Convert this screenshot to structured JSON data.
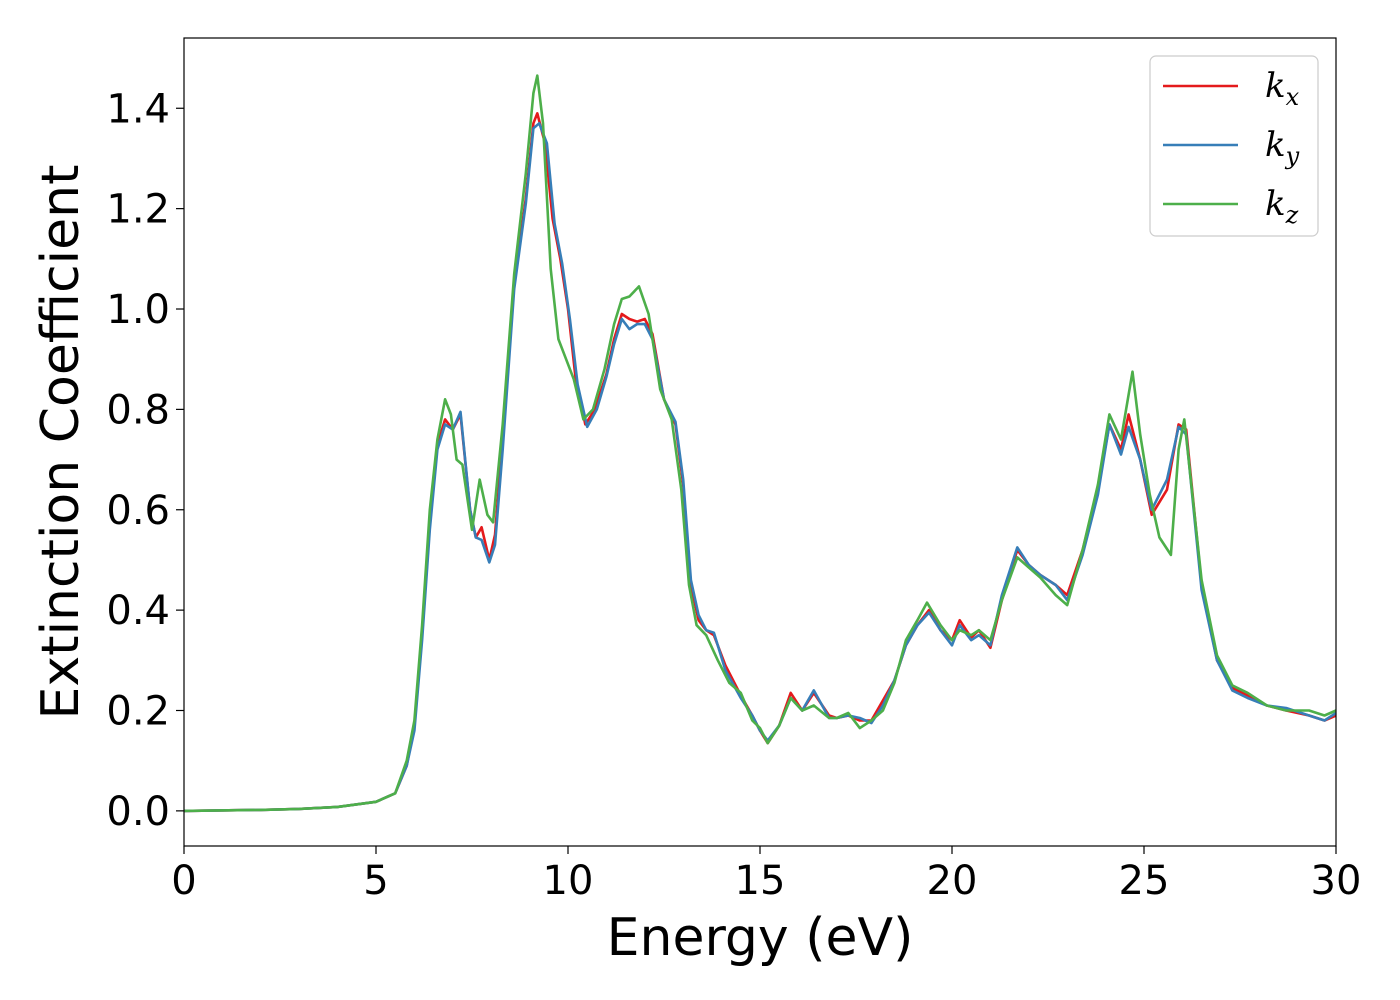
{
  "chart_data": {
    "type": "line",
    "xlabel": "Energy (eV)",
    "ylabel": "Extinction Coefficient",
    "xlim": [
      0,
      30
    ],
    "ylim": [
      -0.07,
      1.54
    ],
    "xticks": [
      0,
      5,
      10,
      15,
      20,
      25,
      30
    ],
    "xtick_labels": [
      "0",
      "5",
      "10",
      "15",
      "20",
      "25",
      "30"
    ],
    "yticks": [
      0.0,
      0.2,
      0.4,
      0.6,
      0.8,
      1.0,
      1.2,
      1.4
    ],
    "ytick_labels": [
      "0.0",
      "0.2",
      "0.4",
      "0.6",
      "0.8",
      "1.0",
      "1.2",
      "1.4"
    ],
    "grid": false,
    "legend_position": "top-right",
    "series": [
      {
        "name": "k_x",
        "label_base": "k",
        "label_sub": "x",
        "color": "#e41a1c",
        "points": [
          [
            0,
            0
          ],
          [
            2,
            0.002
          ],
          [
            3,
            0.004
          ],
          [
            4,
            0.008
          ],
          [
            5,
            0.018
          ],
          [
            5.5,
            0.035
          ],
          [
            5.8,
            0.09
          ],
          [
            6.0,
            0.17
          ],
          [
            6.2,
            0.35
          ],
          [
            6.4,
            0.57
          ],
          [
            6.6,
            0.73
          ],
          [
            6.8,
            0.78
          ],
          [
            7.0,
            0.76
          ],
          [
            7.2,
            0.79
          ],
          [
            7.45,
            0.6
          ],
          [
            7.6,
            0.545
          ],
          [
            7.75,
            0.565
          ],
          [
            7.95,
            0.5
          ],
          [
            8.1,
            0.55
          ],
          [
            8.3,
            0.74
          ],
          [
            8.6,
            1.05
          ],
          [
            8.9,
            1.22
          ],
          [
            9.1,
            1.37
          ],
          [
            9.2,
            1.39
          ],
          [
            9.4,
            1.33
          ],
          [
            9.6,
            1.18
          ],
          [
            9.8,
            1.1
          ],
          [
            10.0,
            1.0
          ],
          [
            10.2,
            0.86
          ],
          [
            10.45,
            0.77
          ],
          [
            10.7,
            0.8
          ],
          [
            11.0,
            0.87
          ],
          [
            11.2,
            0.94
          ],
          [
            11.4,
            0.99
          ],
          [
            11.6,
            0.98
          ],
          [
            11.8,
            0.975
          ],
          [
            12.0,
            0.98
          ],
          [
            12.2,
            0.95
          ],
          [
            12.5,
            0.82
          ],
          [
            12.8,
            0.77
          ],
          [
            13.0,
            0.65
          ],
          [
            13.2,
            0.45
          ],
          [
            13.4,
            0.38
          ],
          [
            13.6,
            0.36
          ],
          [
            13.8,
            0.35
          ],
          [
            14.1,
            0.29
          ],
          [
            14.5,
            0.23
          ],
          [
            14.8,
            0.19
          ],
          [
            15.0,
            0.16
          ],
          [
            15.2,
            0.135
          ],
          [
            15.5,
            0.17
          ],
          [
            15.8,
            0.235
          ],
          [
            16.1,
            0.2
          ],
          [
            16.4,
            0.235
          ],
          [
            16.8,
            0.19
          ],
          [
            17.0,
            0.185
          ],
          [
            17.3,
            0.19
          ],
          [
            17.6,
            0.18
          ],
          [
            17.9,
            0.18
          ],
          [
            18.2,
            0.22
          ],
          [
            18.5,
            0.26
          ],
          [
            18.8,
            0.33
          ],
          [
            19.1,
            0.37
          ],
          [
            19.4,
            0.4
          ],
          [
            19.7,
            0.36
          ],
          [
            20.0,
            0.34
          ],
          [
            20.2,
            0.38
          ],
          [
            20.5,
            0.345
          ],
          [
            20.7,
            0.36
          ],
          [
            21.0,
            0.325
          ],
          [
            21.3,
            0.42
          ],
          [
            21.7,
            0.52
          ],
          [
            22.0,
            0.49
          ],
          [
            22.3,
            0.47
          ],
          [
            22.7,
            0.45
          ],
          [
            23.0,
            0.43
          ],
          [
            23.4,
            0.52
          ],
          [
            23.8,
            0.64
          ],
          [
            24.1,
            0.77
          ],
          [
            24.4,
            0.72
          ],
          [
            24.6,
            0.79
          ],
          [
            24.9,
            0.7
          ],
          [
            25.2,
            0.59
          ],
          [
            25.6,
            0.64
          ],
          [
            25.9,
            0.77
          ],
          [
            26.1,
            0.76
          ],
          [
            26.5,
            0.45
          ],
          [
            26.9,
            0.3
          ],
          [
            27.3,
            0.245
          ],
          [
            27.7,
            0.23
          ],
          [
            28.2,
            0.21
          ],
          [
            28.7,
            0.2
          ],
          [
            29.3,
            0.19
          ],
          [
            29.7,
            0.18
          ],
          [
            30.0,
            0.19
          ]
        ]
      },
      {
        "name": "k_y",
        "label_base": "k",
        "label_sub": "y",
        "color": "#377eb8",
        "points": [
          [
            0,
            0
          ],
          [
            2,
            0.002
          ],
          [
            3,
            0.004
          ],
          [
            4,
            0.008
          ],
          [
            5,
            0.018
          ],
          [
            5.5,
            0.035
          ],
          [
            5.8,
            0.09
          ],
          [
            6.0,
            0.16
          ],
          [
            6.2,
            0.34
          ],
          [
            6.4,
            0.56
          ],
          [
            6.6,
            0.72
          ],
          [
            6.8,
            0.77
          ],
          [
            7.0,
            0.76
          ],
          [
            7.2,
            0.795
          ],
          [
            7.45,
            0.6
          ],
          [
            7.6,
            0.545
          ],
          [
            7.75,
            0.54
          ],
          [
            7.95,
            0.495
          ],
          [
            8.1,
            0.53
          ],
          [
            8.3,
            0.72
          ],
          [
            8.6,
            1.04
          ],
          [
            8.9,
            1.21
          ],
          [
            9.1,
            1.36
          ],
          [
            9.25,
            1.37
          ],
          [
            9.45,
            1.33
          ],
          [
            9.65,
            1.17
          ],
          [
            9.85,
            1.09
          ],
          [
            10.05,
            0.98
          ],
          [
            10.25,
            0.85
          ],
          [
            10.5,
            0.765
          ],
          [
            10.75,
            0.8
          ],
          [
            11.0,
            0.865
          ],
          [
            11.2,
            0.93
          ],
          [
            11.4,
            0.98
          ],
          [
            11.6,
            0.96
          ],
          [
            11.8,
            0.97
          ],
          [
            12.0,
            0.97
          ],
          [
            12.2,
            0.94
          ],
          [
            12.5,
            0.82
          ],
          [
            12.8,
            0.775
          ],
          [
            13.0,
            0.66
          ],
          [
            13.2,
            0.46
          ],
          [
            13.4,
            0.39
          ],
          [
            13.6,
            0.36
          ],
          [
            13.8,
            0.355
          ],
          [
            14.1,
            0.28
          ],
          [
            14.5,
            0.225
          ],
          [
            14.8,
            0.19
          ],
          [
            15.0,
            0.16
          ],
          [
            15.2,
            0.14
          ],
          [
            15.5,
            0.17
          ],
          [
            15.8,
            0.225
          ],
          [
            16.1,
            0.2
          ],
          [
            16.4,
            0.24
          ],
          [
            16.8,
            0.185
          ],
          [
            17.0,
            0.185
          ],
          [
            17.3,
            0.19
          ],
          [
            17.6,
            0.185
          ],
          [
            17.9,
            0.175
          ],
          [
            18.2,
            0.21
          ],
          [
            18.5,
            0.26
          ],
          [
            18.8,
            0.33
          ],
          [
            19.1,
            0.37
          ],
          [
            19.4,
            0.395
          ],
          [
            19.7,
            0.36
          ],
          [
            20.0,
            0.33
          ],
          [
            20.2,
            0.37
          ],
          [
            20.5,
            0.34
          ],
          [
            20.7,
            0.35
          ],
          [
            21.0,
            0.33
          ],
          [
            21.3,
            0.43
          ],
          [
            21.7,
            0.525
          ],
          [
            22.0,
            0.49
          ],
          [
            22.3,
            0.47
          ],
          [
            22.7,
            0.45
          ],
          [
            23.0,
            0.42
          ],
          [
            23.4,
            0.51
          ],
          [
            23.8,
            0.63
          ],
          [
            24.1,
            0.77
          ],
          [
            24.4,
            0.71
          ],
          [
            24.6,
            0.765
          ],
          [
            24.9,
            0.7
          ],
          [
            25.2,
            0.6
          ],
          [
            25.6,
            0.66
          ],
          [
            25.9,
            0.765
          ],
          [
            26.1,
            0.75
          ],
          [
            26.5,
            0.44
          ],
          [
            26.9,
            0.3
          ],
          [
            27.3,
            0.24
          ],
          [
            27.7,
            0.225
          ],
          [
            28.2,
            0.21
          ],
          [
            28.7,
            0.205
          ],
          [
            29.3,
            0.19
          ],
          [
            29.7,
            0.18
          ],
          [
            30.0,
            0.195
          ]
        ]
      },
      {
        "name": "k_z",
        "label_base": "k",
        "label_sub": "z",
        "color": "#4daf4a",
        "points": [
          [
            0,
            0
          ],
          [
            2,
            0.002
          ],
          [
            3,
            0.004
          ],
          [
            4,
            0.008
          ],
          [
            5,
            0.018
          ],
          [
            5.5,
            0.035
          ],
          [
            5.8,
            0.1
          ],
          [
            6.0,
            0.18
          ],
          [
            6.2,
            0.37
          ],
          [
            6.4,
            0.6
          ],
          [
            6.6,
            0.74
          ],
          [
            6.8,
            0.82
          ],
          [
            6.95,
            0.79
          ],
          [
            7.1,
            0.7
          ],
          [
            7.25,
            0.69
          ],
          [
            7.5,
            0.56
          ],
          [
            7.7,
            0.66
          ],
          [
            7.9,
            0.59
          ],
          [
            8.05,
            0.575
          ],
          [
            8.3,
            0.77
          ],
          [
            8.6,
            1.07
          ],
          [
            8.9,
            1.27
          ],
          [
            9.1,
            1.43
          ],
          [
            9.2,
            1.465
          ],
          [
            9.35,
            1.37
          ],
          [
            9.55,
            1.08
          ],
          [
            9.75,
            0.94
          ],
          [
            9.95,
            0.9
          ],
          [
            10.15,
            0.86
          ],
          [
            10.4,
            0.78
          ],
          [
            10.65,
            0.8
          ],
          [
            10.95,
            0.88
          ],
          [
            11.2,
            0.97
          ],
          [
            11.4,
            1.02
          ],
          [
            11.6,
            1.025
          ],
          [
            11.85,
            1.045
          ],
          [
            12.1,
            0.99
          ],
          [
            12.4,
            0.84
          ],
          [
            12.7,
            0.78
          ],
          [
            12.95,
            0.64
          ],
          [
            13.15,
            0.45
          ],
          [
            13.35,
            0.37
          ],
          [
            13.6,
            0.35
          ],
          [
            13.9,
            0.3
          ],
          [
            14.2,
            0.255
          ],
          [
            14.5,
            0.235
          ],
          [
            14.8,
            0.18
          ],
          [
            15.0,
            0.165
          ],
          [
            15.2,
            0.135
          ],
          [
            15.5,
            0.17
          ],
          [
            15.8,
            0.225
          ],
          [
            16.1,
            0.2
          ],
          [
            16.4,
            0.21
          ],
          [
            16.8,
            0.185
          ],
          [
            17.0,
            0.185
          ],
          [
            17.3,
            0.195
          ],
          [
            17.6,
            0.165
          ],
          [
            17.9,
            0.18
          ],
          [
            18.2,
            0.2
          ],
          [
            18.5,
            0.255
          ],
          [
            18.8,
            0.34
          ],
          [
            19.1,
            0.38
          ],
          [
            19.35,
            0.415
          ],
          [
            19.7,
            0.37
          ],
          [
            20.0,
            0.34
          ],
          [
            20.2,
            0.36
          ],
          [
            20.5,
            0.35
          ],
          [
            20.7,
            0.36
          ],
          [
            21.0,
            0.34
          ],
          [
            21.3,
            0.42
          ],
          [
            21.7,
            0.505
          ],
          [
            22.0,
            0.485
          ],
          [
            22.3,
            0.465
          ],
          [
            22.7,
            0.43
          ],
          [
            23.0,
            0.41
          ],
          [
            23.4,
            0.52
          ],
          [
            23.8,
            0.65
          ],
          [
            24.1,
            0.79
          ],
          [
            24.4,
            0.74
          ],
          [
            24.7,
            0.875
          ],
          [
            24.9,
            0.75
          ],
          [
            25.15,
            0.63
          ],
          [
            25.4,
            0.545
          ],
          [
            25.7,
            0.51
          ],
          [
            25.9,
            0.72
          ],
          [
            26.05,
            0.78
          ],
          [
            26.5,
            0.46
          ],
          [
            26.9,
            0.31
          ],
          [
            27.3,
            0.25
          ],
          [
            27.7,
            0.235
          ],
          [
            28.2,
            0.21
          ],
          [
            28.7,
            0.2
          ],
          [
            29.3,
            0.2
          ],
          [
            29.7,
            0.19
          ],
          [
            30.0,
            0.2
          ]
        ]
      }
    ]
  }
}
